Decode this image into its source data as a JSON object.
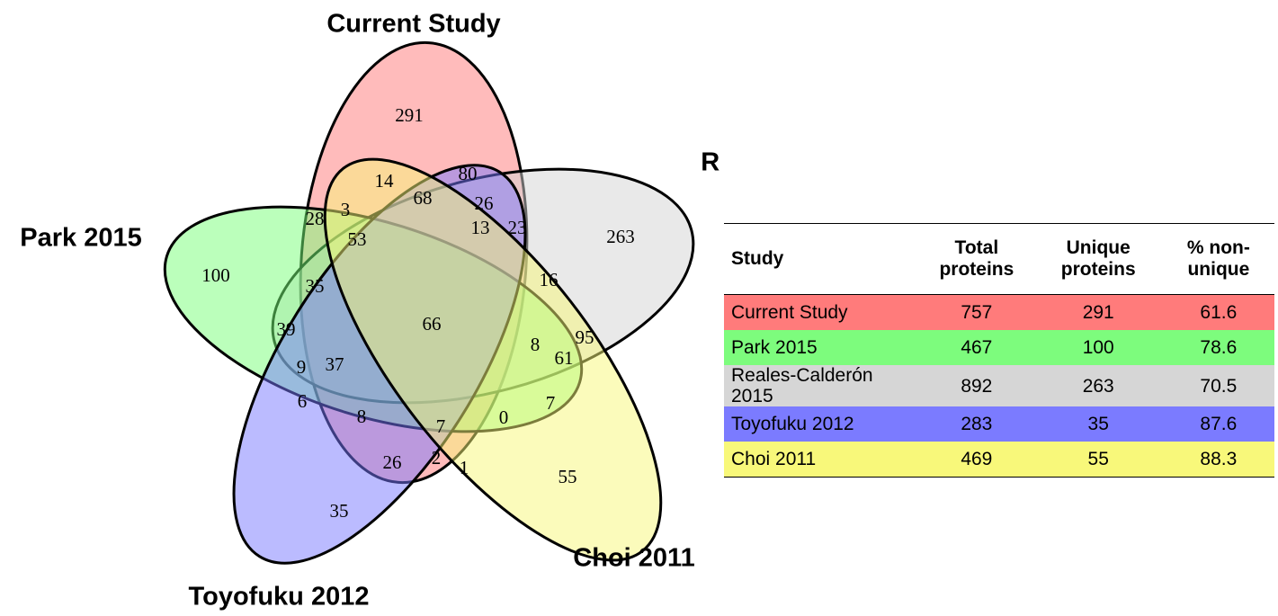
{
  "sets": [
    {
      "label": "Current Study",
      "color": "#ff7777"
    },
    {
      "label": "Reales-Calderón 2015",
      "color": "#d4d4d4"
    },
    {
      "label": "Park 2015",
      "color": "#77ff77"
    },
    {
      "label": "Toyofuku 2012",
      "color": "#7777ff"
    },
    {
      "label": "Choi 2011",
      "color": "#f8f878"
    }
  ],
  "regions": [
    291,
    80,
    14,
    68,
    26,
    28,
    3,
    13,
    23,
    263,
    53,
    100,
    35,
    16,
    66,
    39,
    95,
    8,
    61,
    9,
    37,
    6,
    8,
    7,
    7,
    0,
    26,
    2,
    1,
    55,
    35
  ],
  "table": {
    "header": [
      "Study",
      "Total proteins",
      "Unique proteins",
      "% non-unique"
    ],
    "rows": [
      [
        "Current Study",
        757,
        291,
        61.6
      ],
      [
        "Park 2015",
        467,
        100,
        78.6
      ],
      [
        "Reales-Calderón 2015",
        892,
        263,
        70.5
      ],
      [
        "Toyofuku 2012",
        283,
        35,
        87.6
      ],
      [
        "Choi 2011",
        469,
        55,
        88.3
      ]
    ],
    "row_colors": [
      "#ff7b7b",
      "#7dfc7d",
      "#d6d6d6",
      "#7b7bff",
      "#f8f87a"
    ]
  }
}
